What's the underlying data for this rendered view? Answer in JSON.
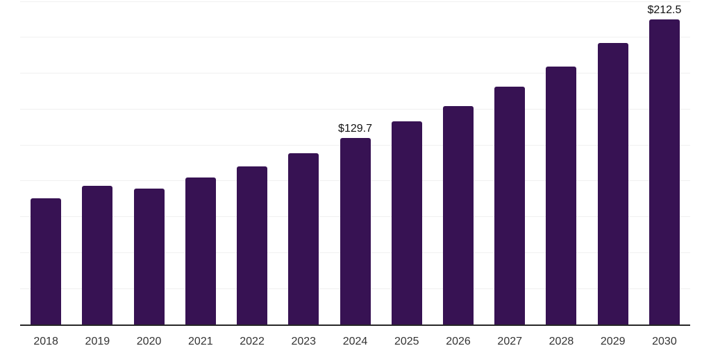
{
  "chart_data": {
    "type": "bar",
    "title": "",
    "xlabel": "",
    "ylabel": "",
    "categories": [
      "2018",
      "2019",
      "2020",
      "2021",
      "2022",
      "2023",
      "2024",
      "2025",
      "2026",
      "2027",
      "2028",
      "2029",
      "2030"
    ],
    "values": [
      87.8,
      96.6,
      94.7,
      102.4,
      110.2,
      119.2,
      129.7,
      141.4,
      151.9,
      165.4,
      179.5,
      195.8,
      212.5
    ],
    "data_labels": [
      "",
      "",
      "",
      "",
      "",
      "",
      "$129.7",
      "",
      "",
      "",
      "",
      "",
      "$212.5"
    ],
    "ylim": [
      0,
      225
    ],
    "gridline_step": 25,
    "grid": "horizontal",
    "legend_position": "none",
    "y_axis_tick_labels_visible": false,
    "colors": {
      "bar": "#371253",
      "axis_line": "#262626",
      "gridline": "#f0f0f0",
      "tick_label": "#333333",
      "data_label": "#111111",
      "background": "#ffffff"
    }
  }
}
